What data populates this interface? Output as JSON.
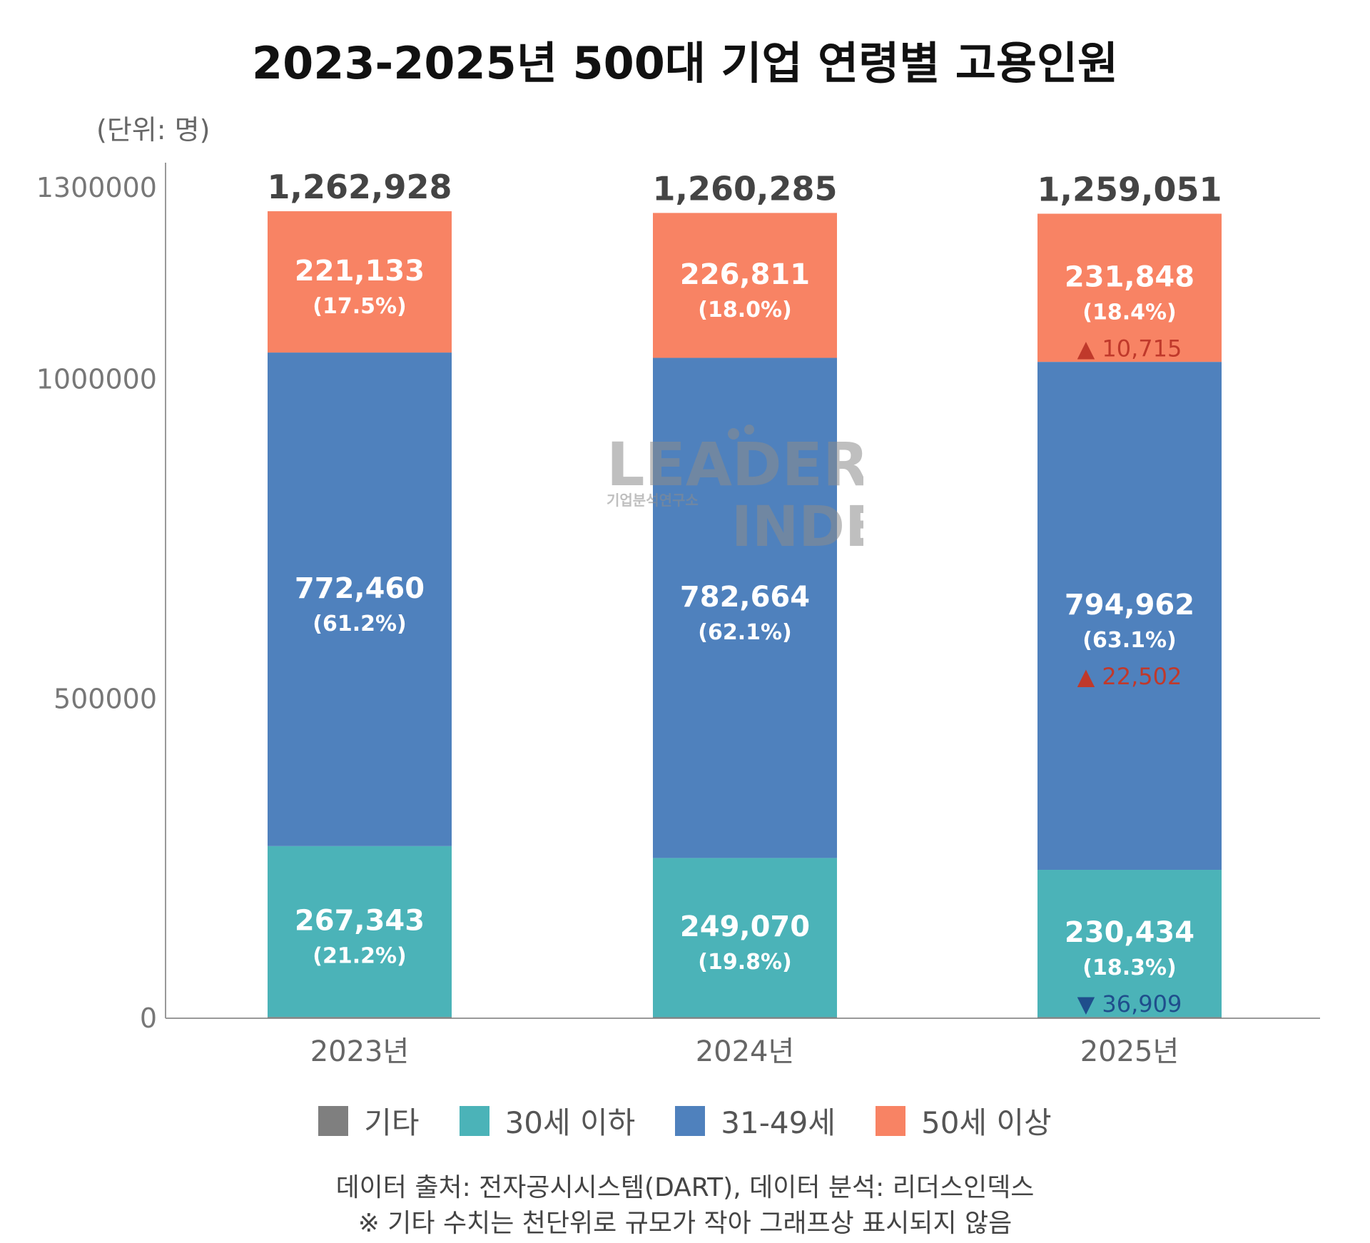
{
  "unit_label": "(단위: 명)",
  "footer": {
    "source": "데이터 출처: 전자공시시스템(DART), 데이터 분석: 리더스인덱스",
    "note": "※ 기타 수치는 천단위로 규모가 작아 그래프상 표시되지 않음"
  },
  "watermark": {
    "line1": "LEADERS",
    "line2": "INDEX",
    "sub": "기업분석연구소"
  },
  "colors": {
    "etc": "#7f7f7f",
    "under30": "#4bb3b8",
    "mid": "#4f81bd",
    "over50": "#f88364",
    "up": "#c0392b",
    "down": "#1f4e8c"
  },
  "chart_data": {
    "type": "bar",
    "stacked": true,
    "title": "2023-2025년 500대 기업 연령별 고용인원",
    "categories": [
      "2023년",
      "2024년",
      "2025년"
    ],
    "y_ticks": [
      "0",
      "500000",
      "1000000",
      "1300000"
    ],
    "ylim": [
      0,
      1300000
    ],
    "totals": [
      1262928,
      1260285,
      1259051
    ],
    "total_labels": [
      "1,262,928",
      "1,260,285",
      "1,259,051"
    ],
    "legend_position": "bottom",
    "series": [
      {
        "name": "기타",
        "color": "#7f7f7f",
        "values": [
          1992,
          1740,
          1807
        ],
        "labels": [
          "",
          "",
          ""
        ],
        "pct_labels": [
          "",
          "",
          ""
        ]
      },
      {
        "name": "30세 이하",
        "color": "#4bb3b8",
        "values": [
          267343,
          249070,
          230434
        ],
        "labels": [
          "267,343",
          "249,070",
          "230,434"
        ],
        "pct_labels": [
          "(21.2%)",
          "(19.8%)",
          "(18.3%)"
        ]
      },
      {
        "name": "31-49세",
        "color": "#4f81bd",
        "values": [
          772460,
          782664,
          794962
        ],
        "labels": [
          "772,460",
          "782,664",
          "794,962"
        ],
        "pct_labels": [
          "(61.2%)",
          "(62.1%)",
          "(63.1%)"
        ]
      },
      {
        "name": "50세 이상",
        "color": "#f88364",
        "values": [
          221133,
          226811,
          231848
        ],
        "labels": [
          "221,133",
          "226,811",
          "231,848"
        ],
        "pct_labels": [
          "(17.5%)",
          "(18.0%)",
          "(18.4%)"
        ]
      }
    ],
    "annotations": [
      {
        "category": "2025년",
        "series": "50세 이상",
        "direction": "up",
        "symbol": "▲",
        "text": "10,715"
      },
      {
        "category": "2025년",
        "series": "31-49세",
        "direction": "up",
        "symbol": "▲",
        "text": "22,502"
      },
      {
        "category": "2025년",
        "series": "30세 이하",
        "direction": "down",
        "symbol": "▼",
        "text": "36,909"
      }
    ]
  }
}
